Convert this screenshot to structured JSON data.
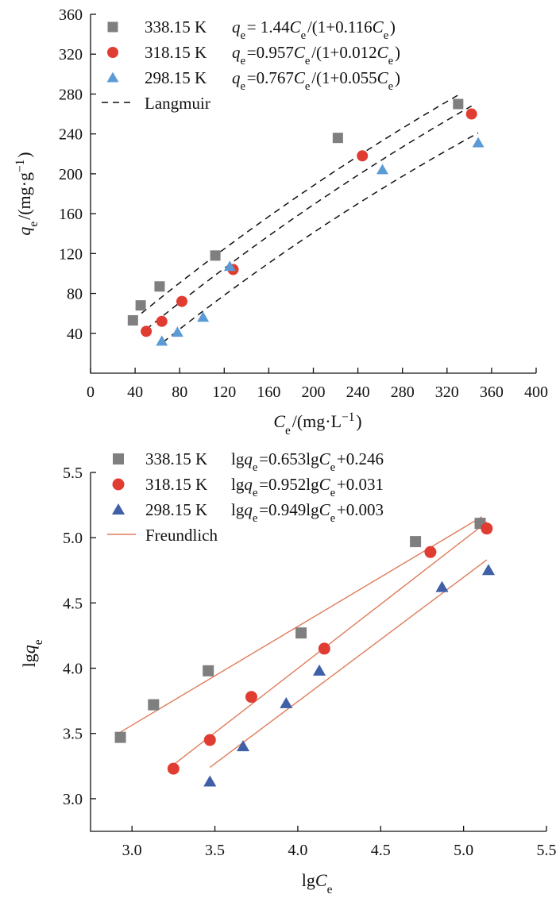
{
  "chart_data": [
    {
      "type": "scatter",
      "xlabel": "Ce/(mg·L−1)",
      "ylabel": "qe/(mg·g−1)",
      "xlim": [
        0,
        400
      ],
      "ylim": [
        0,
        360
      ],
      "x_ticks": [
        "0",
        "40",
        "80",
        "120",
        "160",
        "200",
        "240",
        "280",
        "320",
        "360",
        "400"
      ],
      "y_ticks": [
        "40",
        "80",
        "120",
        "160",
        "200",
        "240",
        "280",
        "320",
        "360"
      ],
      "grid": false,
      "legend_position": "top-left",
      "fit_label": "Langmuir",
      "series": [
        {
          "name": "338.15 K",
          "equation": "qe= 1.44Ce/(1+0.116Ce)",
          "marker": "square",
          "color": "#7f7f7f",
          "x": [
            38,
            45,
            62,
            112,
            222,
            330
          ],
          "y": [
            53,
            68,
            87,
            118,
            236,
            270
          ],
          "fit": {
            "x": [
              38,
              330
            ],
            "y": [
              53,
              279
            ]
          }
        },
        {
          "name": "318.15 K",
          "equation": "qe=0.957Ce/(1+0.012Ce)",
          "marker": "circle",
          "color": "#e03c31",
          "x": [
            50,
            64,
            82,
            128,
            244,
            342
          ],
          "y": [
            42,
            52,
            72,
            104,
            218,
            260
          ],
          "fit": {
            "x": [
              50,
              342
            ],
            "y": [
              44,
              268
            ]
          }
        },
        {
          "name": "298.15 K",
          "equation": "qe=0.767Ce/(1+0.055Ce)",
          "marker": "triangle",
          "color": "#5b9bd5",
          "x": [
            64,
            78,
            101,
            125,
            262,
            348
          ],
          "y": [
            32,
            41,
            56,
            107,
            204,
            231
          ],
          "fit": {
            "x": [
              65,
              348
            ],
            "y": [
              31,
              241
            ]
          }
        }
      ]
    },
    {
      "type": "scatter",
      "xlabel": "lgCe",
      "ylabel": "lgqe",
      "xlim": [
        2.75,
        5.5
      ],
      "ylim": [
        2.75,
        5.5
      ],
      "x_ticks": [
        "3.0",
        "3.5",
        "4.0",
        "4.5",
        "5.0",
        "5.5"
      ],
      "y_ticks": [
        "3.0",
        "3.5",
        "4.0",
        "4.5",
        "5.0",
        "5.5"
      ],
      "grid": false,
      "legend_position": "top-left",
      "fit_label": "Freundlich",
      "fit_color": "#e07b5a",
      "series": [
        {
          "name": "338.15 K",
          "equation": "lgqe=0.653lgCe+0.246",
          "marker": "square",
          "color": "#7f7f7f",
          "x": [
            2.93,
            3.13,
            3.46,
            4.02,
            4.71,
            5.1
          ],
          "y": [
            3.47,
            3.72,
            3.98,
            4.27,
            4.97,
            5.11
          ],
          "fit": {
            "x": [
              2.93,
              5.11
            ],
            "y": [
              3.51,
              5.16
            ]
          }
        },
        {
          "name": "318.15 K",
          "equation": "lgqe=0.952lgCe+0.031",
          "marker": "circle",
          "color": "#e03c31",
          "x": [
            3.25,
            3.47,
            3.72,
            4.16,
            4.8,
            5.14
          ],
          "y": [
            3.23,
            3.45,
            3.78,
            4.15,
            4.89,
            5.07
          ],
          "fit": {
            "x": [
              3.25,
              5.14
            ],
            "y": [
              3.26,
              5.12
            ]
          }
        },
        {
          "name": "298.15 K",
          "equation": "lgqe=0.949lgCe+0.003",
          "marker": "triangle",
          "color": "#3f5fa6",
          "x": [
            3.47,
            3.67,
            3.93,
            4.13,
            4.87,
            5.15
          ],
          "y": [
            3.13,
            3.4,
            3.73,
            3.98,
            4.62,
            4.75
          ],
          "fit": {
            "x": [
              3.47,
              5.14
            ],
            "y": [
              3.24,
              4.83
            ]
          }
        }
      ]
    }
  ]
}
